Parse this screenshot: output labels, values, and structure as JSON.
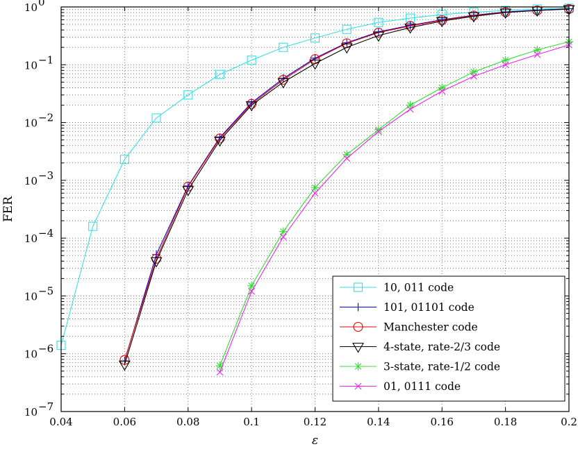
{
  "chart_data": {
    "type": "line",
    "title": "",
    "xlabel": "ε",
    "ylabel": "FER",
    "xlim": [
      0.04,
      0.2
    ],
    "ylim": [
      1e-07,
      1
    ],
    "yscale": "log",
    "grid": true,
    "legend_position": "bottom-right",
    "x_ticks": [
      0.04,
      0.06,
      0.08,
      0.1,
      0.12,
      0.14,
      0.16,
      0.18,
      0.2
    ],
    "x_tick_labels": [
      "0.04",
      "0.06",
      "0.08",
      "0.1",
      "0.12",
      "0.14",
      "0.16",
      "0.18",
      "0.2"
    ],
    "y_ticks": [
      {
        "value": 1e-07,
        "mantissa": "10",
        "exp": "−7"
      },
      {
        "value": 1e-06,
        "mantissa": "10",
        "exp": "−6"
      },
      {
        "value": 1e-05,
        "mantissa": "10",
        "exp": "−5"
      },
      {
        "value": 0.0001,
        "mantissa": "10",
        "exp": "−4"
      },
      {
        "value": 0.001,
        "mantissa": "10",
        "exp": "−3"
      },
      {
        "value": 0.01,
        "mantissa": "10",
        "exp": "−2"
      },
      {
        "value": 0.1,
        "mantissa": "10",
        "exp": "−1"
      },
      {
        "value": 1,
        "mantissa": "10",
        "exp": "0"
      }
    ],
    "series": [
      {
        "name": "10, 011 code",
        "color": "#33e0e8",
        "marker": "square",
        "x": [
          0.04,
          0.05,
          0.06,
          0.07,
          0.08,
          0.09,
          0.1,
          0.11,
          0.12,
          0.13,
          0.14,
          0.15,
          0.16,
          0.17,
          0.18,
          0.19,
          0.2
        ],
        "y": [
          1.4e-06,
          0.00016,
          0.0023,
          0.012,
          0.03,
          0.068,
          0.12,
          0.2,
          0.29,
          0.41,
          0.54,
          0.64,
          0.74,
          0.81,
          0.87,
          0.92,
          0.95
        ]
      },
      {
        "name": "101, 01101 code",
        "color": "#0000dd",
        "marker": "plus",
        "x": [
          0.06,
          0.07,
          0.08,
          0.09,
          0.1,
          0.11,
          0.12,
          0.13,
          0.14,
          0.15,
          0.16,
          0.17,
          0.18,
          0.19,
          0.2
        ],
        "y": [
          7.5e-07,
          5.2e-05,
          0.0008,
          0.0055,
          0.022,
          0.058,
          0.13,
          0.24,
          0.37,
          0.48,
          0.6,
          0.72,
          0.82,
          0.88,
          0.93
        ]
      },
      {
        "name": "Manchester code",
        "color": "#ee0000",
        "marker": "circle",
        "x": [
          0.06,
          0.07,
          0.08,
          0.09,
          0.1,
          0.11,
          0.12,
          0.13,
          0.14,
          0.15,
          0.16,
          0.17,
          0.18,
          0.19,
          0.2
        ],
        "y": [
          7.8e-07,
          4.4e-05,
          0.00078,
          0.0053,
          0.021,
          0.055,
          0.125,
          0.235,
          0.36,
          0.47,
          0.59,
          0.71,
          0.81,
          0.87,
          0.92
        ]
      },
      {
        "name": "4-state, rate-2/3 code",
        "color": "#000000",
        "marker": "triangle-down",
        "x": [
          0.06,
          0.07,
          0.08,
          0.09,
          0.1,
          0.11,
          0.12,
          0.13,
          0.14,
          0.15,
          0.16,
          0.17,
          0.18,
          0.19,
          0.2
        ],
        "y": [
          6.5e-07,
          4e-05,
          0.00068,
          0.0049,
          0.02,
          0.05,
          0.105,
          0.2,
          0.32,
          0.44,
          0.57,
          0.69,
          0.8,
          0.87,
          0.92
        ]
      },
      {
        "name": "3-state, rate-1/2 code",
        "color": "#33dd33",
        "marker": "asterisk",
        "x": [
          0.09,
          0.1,
          0.11,
          0.12,
          0.13,
          0.14,
          0.15,
          0.16,
          0.17,
          0.18,
          0.19,
          0.2
        ],
        "y": [
          6.2e-07,
          1.5e-05,
          0.00013,
          0.00075,
          0.0028,
          0.0075,
          0.02,
          0.04,
          0.075,
          0.12,
          0.18,
          0.25
        ]
      },
      {
        "name": "01, 0111 code",
        "color": "#ee22ee",
        "marker": "x",
        "x": [
          0.09,
          0.1,
          0.11,
          0.12,
          0.13,
          0.14,
          0.15,
          0.16,
          0.17,
          0.18,
          0.19,
          0.2
        ],
        "y": [
          4.8e-07,
          1.2e-05,
          0.000105,
          0.0006,
          0.0024,
          0.007,
          0.017,
          0.035,
          0.063,
          0.1,
          0.15,
          0.22
        ]
      }
    ]
  }
}
